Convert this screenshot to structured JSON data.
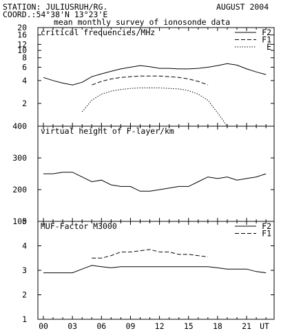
{
  "header": {
    "station": "STATION: JULIUSRUH/RG.",
    "coord": "COORD.:54°38'N 13°23'E",
    "date": "AUGUST 2004",
    "subtitle": "mean monthly survey of ionosonde data"
  },
  "chart_data": [
    {
      "type": "line",
      "title": "critical frequencies/MHz",
      "yscale": "log",
      "ylim": [
        1,
        20
      ],
      "yticks": [
        2,
        4,
        6,
        8,
        10,
        12,
        16,
        20
      ],
      "xticks": [
        "00",
        "03",
        "06",
        "09",
        "12",
        "15",
        "18",
        "21",
        "UT"
      ],
      "legend": "top-right",
      "series": [
        {
          "name": "F2",
          "style": "solid",
          "x": [
            0,
            1,
            2,
            3,
            4,
            5,
            6,
            7,
            8,
            9,
            10,
            11,
            12,
            13,
            14,
            15,
            16,
            17,
            18,
            19,
            20,
            21,
            22,
            23
          ],
          "y": [
            4.4,
            4.0,
            3.7,
            3.5,
            3.8,
            4.5,
            4.9,
            5.3,
            5.7,
            6.0,
            6.3,
            6.1,
            5.8,
            5.8,
            5.7,
            5.7,
            5.8,
            6.0,
            6.3,
            6.7,
            6.4,
            5.7,
            5.2,
            4.8
          ]
        },
        {
          "name": "F1",
          "style": "dashed",
          "x": [
            5,
            6,
            7,
            8,
            9,
            10,
            11,
            12,
            13,
            14,
            15,
            16,
            17
          ],
          "y": [
            3.5,
            3.9,
            4.2,
            4.4,
            4.5,
            4.6,
            4.6,
            4.6,
            4.5,
            4.4,
            4.2,
            3.9,
            3.5
          ]
        },
        {
          "name": "E",
          "style": "dotted",
          "x": [
            4,
            5,
            6,
            7,
            8,
            9,
            10,
            11,
            12,
            13,
            14,
            15,
            16,
            17,
            18,
            19
          ],
          "y": [
            1.55,
            2.2,
            2.65,
            2.9,
            3.05,
            3.15,
            3.2,
            3.2,
            3.2,
            3.15,
            3.1,
            2.95,
            2.65,
            2.2,
            1.5,
            1.0
          ]
        }
      ]
    },
    {
      "type": "line",
      "title": "virtual height of F-layer/km",
      "ylim": [
        100,
        400
      ],
      "yticks": [
        100,
        200,
        300,
        400
      ],
      "xticks": [
        "00",
        "03",
        "06",
        "09",
        "12",
        "15",
        "18",
        "21",
        "UT"
      ],
      "series": [
        {
          "style": "solid",
          "x": [
            0,
            1,
            2,
            3,
            4,
            5,
            6,
            7,
            8,
            9,
            10,
            11,
            12,
            13,
            14,
            15,
            16,
            17,
            18,
            19,
            20,
            21,
            22,
            23
          ],
          "y": [
            250,
            250,
            255,
            255,
            240,
            225,
            230,
            215,
            210,
            210,
            195,
            195,
            200,
            205,
            210,
            210,
            225,
            240,
            235,
            240,
            230,
            235,
            240,
            250
          ]
        }
      ]
    },
    {
      "type": "line",
      "title": "MUF-Factor M3000",
      "ylim": [
        1,
        5
      ],
      "yticks": [
        1,
        2,
        3,
        4,
        5
      ],
      "xticks": [
        "00",
        "03",
        "06",
        "09",
        "12",
        "15",
        "18",
        "21",
        "UT"
      ],
      "legend": "top-right",
      "series": [
        {
          "name": "F2",
          "style": "solid",
          "x": [
            0,
            1,
            2,
            3,
            4,
            5,
            6,
            7,
            8,
            9,
            10,
            11,
            12,
            13,
            14,
            15,
            16,
            17,
            18,
            19,
            20,
            21,
            22,
            23
          ],
          "y": [
            2.9,
            2.9,
            2.9,
            2.9,
            3.05,
            3.2,
            3.15,
            3.1,
            3.15,
            3.15,
            3.15,
            3.15,
            3.15,
            3.15,
            3.15,
            3.15,
            3.15,
            3.15,
            3.1,
            3.05,
            3.05,
            3.05,
            2.95,
            2.9
          ]
        },
        {
          "name": "F1",
          "style": "dashed",
          "x": [
            5,
            6,
            7,
            8,
            9,
            10,
            11,
            12,
            13,
            14,
            15,
            16,
            17
          ],
          "y": [
            3.5,
            3.5,
            3.6,
            3.75,
            3.75,
            3.8,
            3.85,
            3.75,
            3.75,
            3.65,
            3.65,
            3.6,
            3.55
          ]
        }
      ]
    }
  ]
}
